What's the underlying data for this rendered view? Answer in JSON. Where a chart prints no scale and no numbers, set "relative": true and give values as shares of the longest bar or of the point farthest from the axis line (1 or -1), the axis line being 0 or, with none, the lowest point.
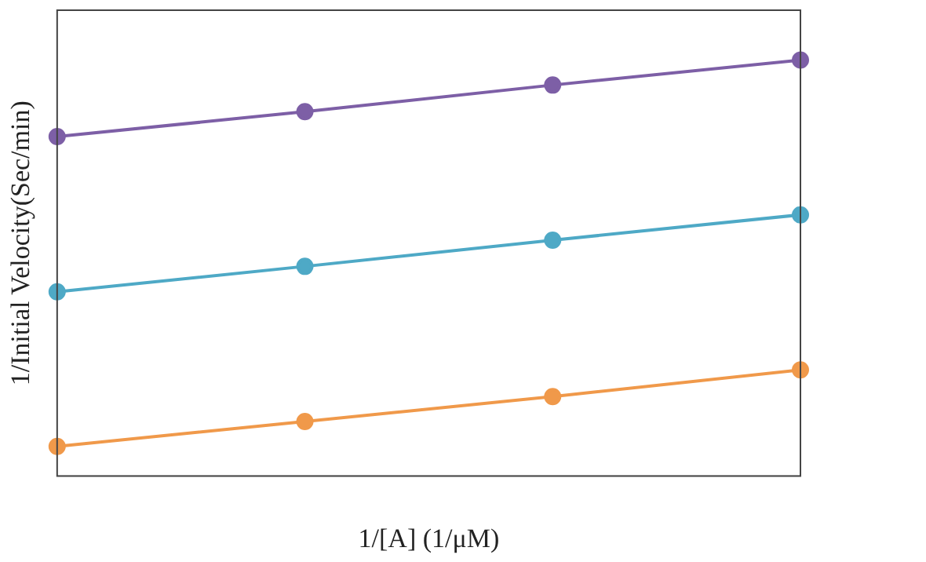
{
  "chart_data": {
    "type": "line",
    "relative": true,
    "xlabel": "1/[A] (1/μM)",
    "ylabel": "1/Initial Velocity(Sec/min)",
    "categories": [
      null,
      null,
      null,
      null
    ],
    "series": [
      {
        "color": "#7d5fa6",
        "values": [
          0.816,
          0.876,
          0.94,
          1
        ]
      },
      {
        "color": "#4ea9c6",
        "values": [
          0.443,
          0.504,
          0.567,
          0.628
        ]
      },
      {
        "color": "#f0994a",
        "values": [
          0.071,
          0.131,
          0.191,
          0.255
        ]
      }
    ],
    "marker": "circle",
    "line_style": "solid",
    "grid": false,
    "legend": false
  }
}
